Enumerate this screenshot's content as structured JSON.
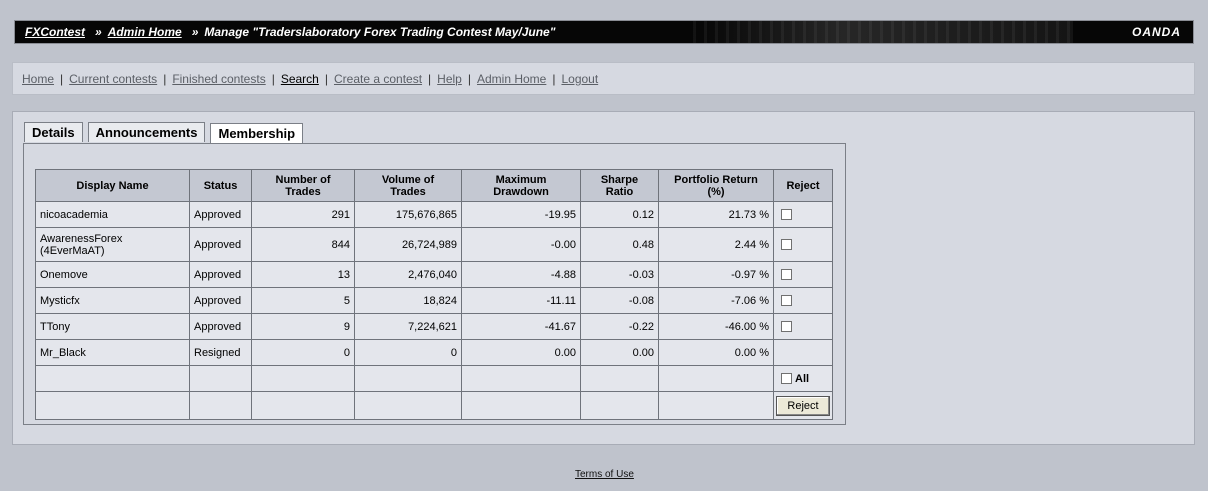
{
  "header": {
    "crumbs": [
      {
        "label": "FXContest",
        "link": true
      },
      {
        "label": "Admin Home",
        "link": true
      }
    ],
    "current": "Manage \"Traderslaboratory Forex Trading Contest May/June\"",
    "separator": "»",
    "logo": "OANDA"
  },
  "nav": {
    "items": [
      {
        "label": "Home"
      },
      {
        "label": "Current contests"
      },
      {
        "label": "Finished contests"
      },
      {
        "label": "Search"
      },
      {
        "label": "Create a contest"
      },
      {
        "label": "Help"
      },
      {
        "label": "Admin Home"
      },
      {
        "label": "Logout"
      }
    ],
    "separator": "|"
  },
  "tabs": [
    {
      "label": "Details"
    },
    {
      "label": "Announcements"
    },
    {
      "label": "Membership",
      "selected": true
    }
  ],
  "table": {
    "headers": {
      "name": "Display Name",
      "status": "Status",
      "trades_1": "Number of",
      "trades_2": "Trades",
      "volume_1": "Volume of",
      "volume_2": "Trades",
      "drawdown_1": "Maximum",
      "drawdown_2": "Drawdown",
      "sharpe_1": "Sharpe",
      "sharpe_2": "Ratio",
      "return_1": "Portfolio Return",
      "return_2": "(%)",
      "reject": "Reject"
    },
    "rows": [
      {
        "name": "nicoacademia",
        "status": "Approved",
        "trades": "291",
        "volume": "175,676,865",
        "drawdown": "-19.95",
        "sharpe": "0.12",
        "return": "21.73 %"
      },
      {
        "name": "AwarenessForex (4EverMaAT)",
        "status": "Approved",
        "trades": "844",
        "volume": "26,724,989",
        "drawdown": "-0.00",
        "sharpe": "0.48",
        "return": "2.44 %"
      },
      {
        "name": "Onemove",
        "status": "Approved",
        "trades": "13",
        "volume": "2,476,040",
        "drawdown": "-4.88",
        "sharpe": "-0.03",
        "return": "-0.97 %"
      },
      {
        "name": "Mysticfx",
        "status": "Approved",
        "trades": "5",
        "volume": "18,824",
        "drawdown": "-11.11",
        "sharpe": "-0.08",
        "return": "-7.06 %"
      },
      {
        "name": "TTony",
        "status": "Approved",
        "trades": "9",
        "volume": "7,224,621",
        "drawdown": "-41.67",
        "sharpe": "-0.22",
        "return": "-46.00 %"
      },
      {
        "name": "Mr_Black",
        "status": "Resigned",
        "trades": "0",
        "volume": "0",
        "drawdown": "0.00",
        "sharpe": "0.00",
        "return": "0.00 %"
      }
    ],
    "all_label": "All",
    "reject_button": "Reject"
  },
  "footer": {
    "terms": "Terms of Use"
  }
}
